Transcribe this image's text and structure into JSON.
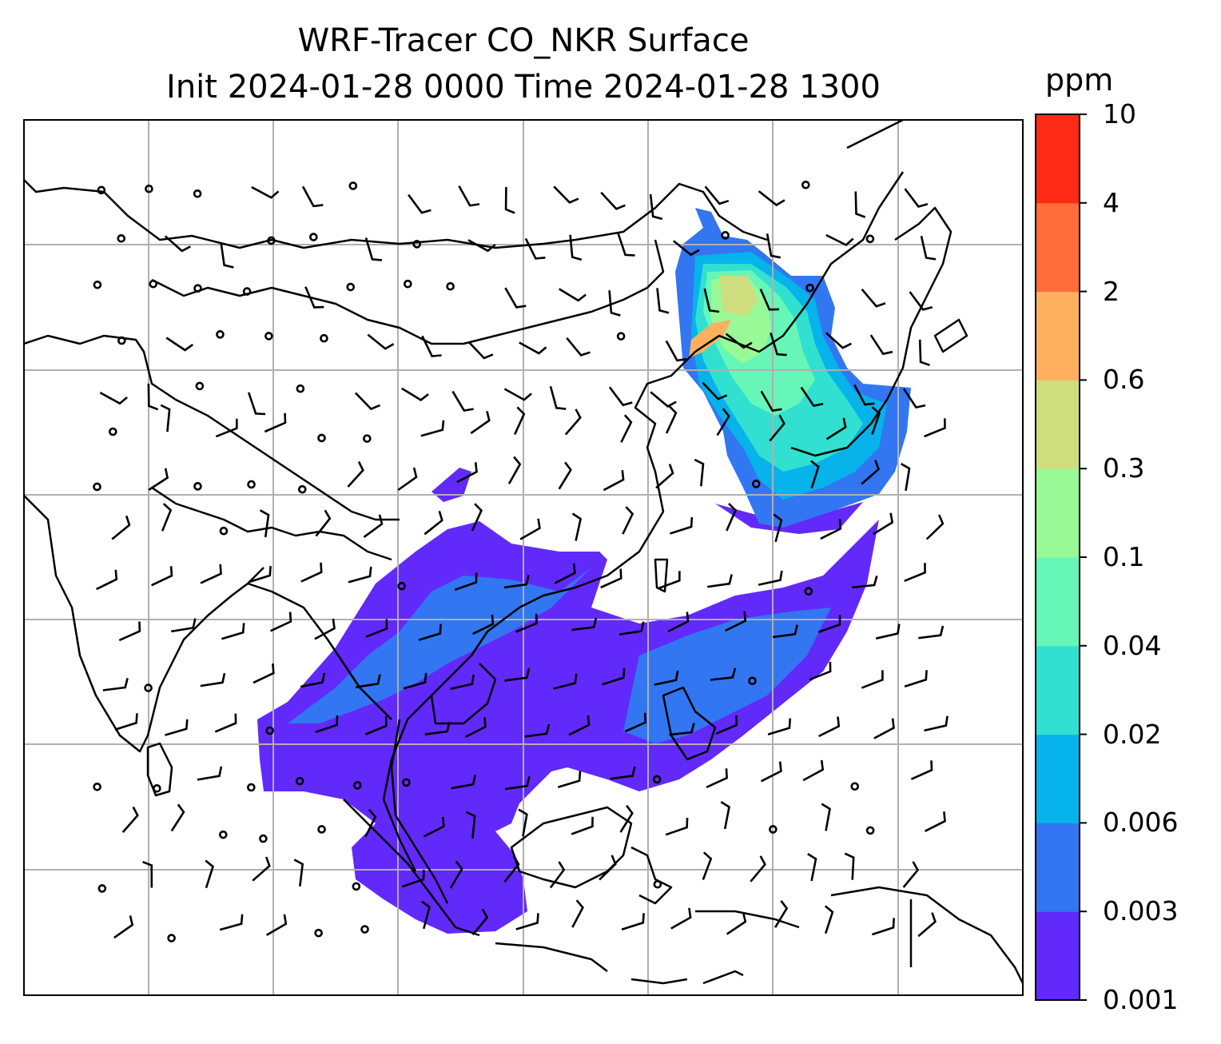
{
  "title": {
    "line1": "WRF-Tracer CO_NKR Surface",
    "line2": "Init 2024-01-28 0000 Time 2024-01-28 1300"
  },
  "colorbar": {
    "unit": "ppm",
    "tick_labels": [
      "10",
      "4",
      "2",
      "0.6",
      "0.3",
      "0.1",
      "0.04",
      "0.02",
      "0.006",
      "0.003",
      "0.001"
    ],
    "levels": [
      0.001,
      0.003,
      0.006,
      0.02,
      0.04,
      0.1,
      0.3,
      0.6,
      2,
      4,
      10
    ],
    "colors": [
      "#6229fb",
      "#3276f2",
      "#06b3ea",
      "#31e0d0",
      "#66f6b8",
      "#98f996",
      "#cede7e",
      "#ffb05f",
      "#ff6d3a",
      "#ff2a16"
    ]
  },
  "colors": {
    "coastline": "#000000",
    "gridlines": "#b0b0b0",
    "wind_barbs": "#000000"
  },
  "map": {
    "field": "CO_NKR surface concentration",
    "overlay": "wind barbs",
    "gridlines": true
  }
}
